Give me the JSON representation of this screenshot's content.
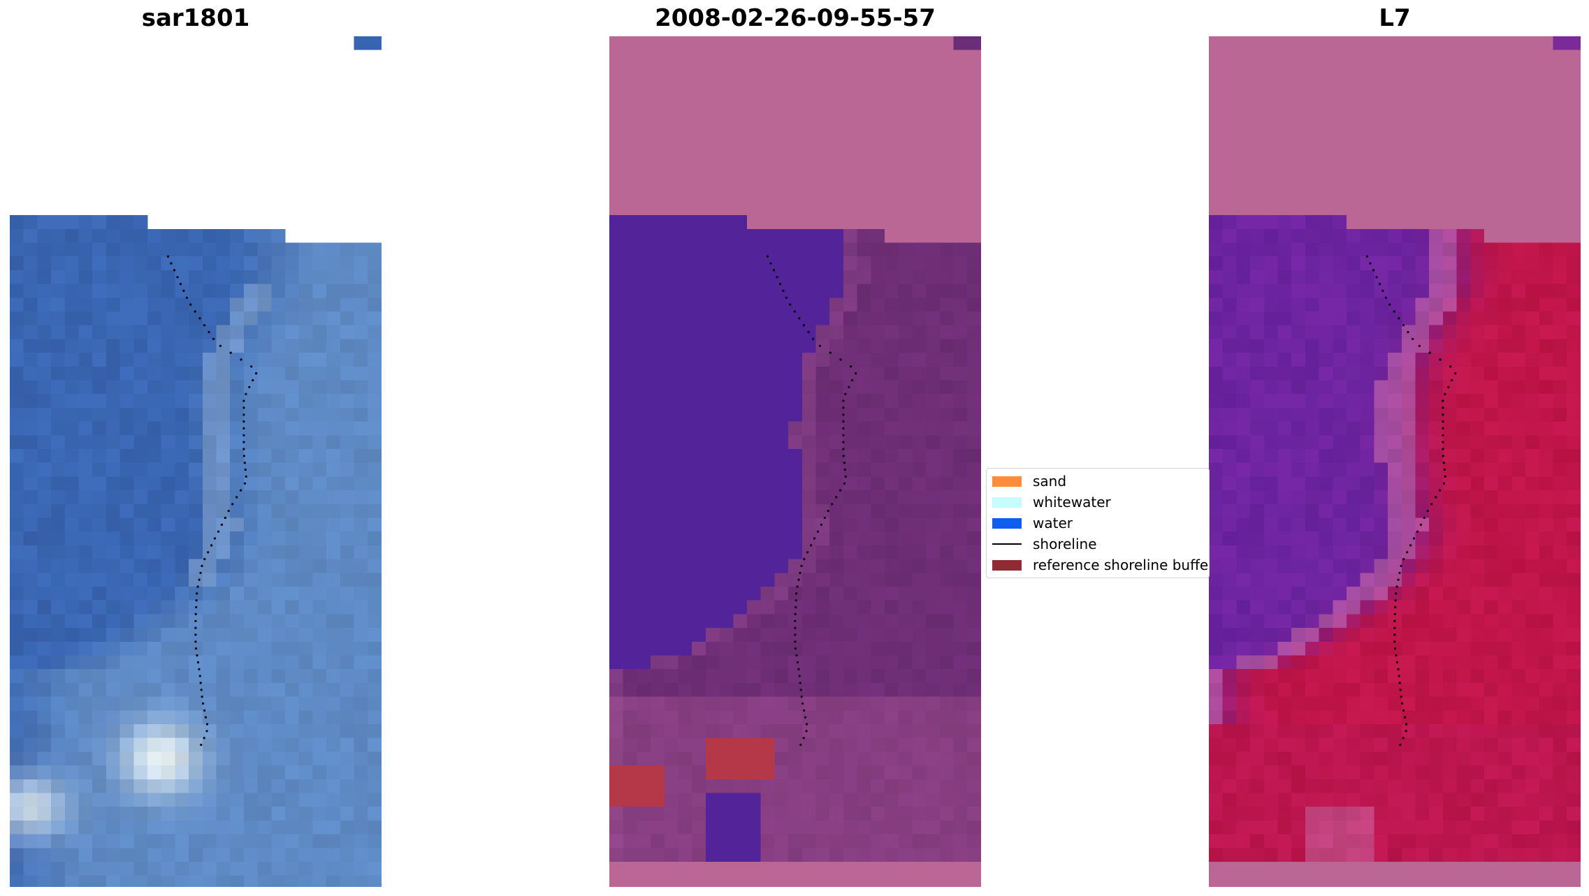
{
  "panels": [
    {
      "title": "sar1801"
    },
    {
      "title": "2008-02-26-09-55-57"
    },
    {
      "title": "L7"
    }
  ],
  "legend": {
    "items": [
      {
        "label": "sand",
        "kind": "patch",
        "color": "#ff8c3a"
      },
      {
        "label": "whitewater",
        "kind": "patch",
        "color": "#c6fcfd"
      },
      {
        "label": "water",
        "kind": "patch",
        "color": "#0f5ef0"
      },
      {
        "label": "shoreline",
        "kind": "line",
        "color": "#000000"
      },
      {
        "label": "reference shoreline buffer",
        "kind": "patch",
        "color": "#8f2b32"
      }
    ]
  },
  "colors": {
    "rgb_water": "#3a66b2",
    "rgb_shore": "#5e8ac4",
    "classified_water": "#532399",
    "classified_land": "#6f2e76",
    "classified_nodata": "#bb6796",
    "classified_sand_overlay": "#b53848",
    "index_water": "#6e24a0",
    "index_land": "#c0154a",
    "index_nodata": "#bb6796"
  }
}
